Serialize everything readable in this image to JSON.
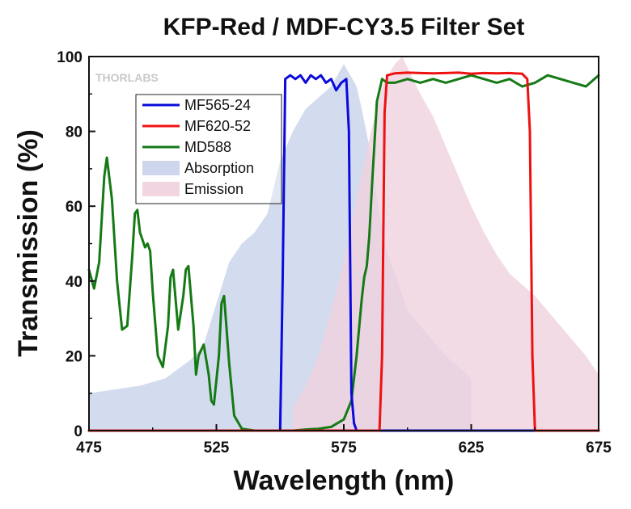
{
  "chart_data": {
    "type": "line",
    "title": "KFP-Red / MDF-CY3.5 Filter Set",
    "xlabel": "Wavelength (nm)",
    "ylabel": "Transmission (%)",
    "xlim": [
      475,
      675
    ],
    "ylim": [
      0,
      100
    ],
    "xticks": [
      475,
      525,
      575,
      625,
      675
    ],
    "yticks": [
      0,
      20,
      40,
      60,
      80,
      100
    ],
    "grid": false,
    "legend_position": "top-left",
    "watermark": "THORLABS",
    "series": [
      {
        "name": "MF565-24",
        "kind": "line",
        "color": "#0a0adc",
        "x": [
          475,
          550,
          551,
          552,
          554,
          556,
          558,
          560,
          562,
          564,
          566,
          568,
          570,
          572,
          574,
          576,
          577,
          578,
          579,
          580,
          675
        ],
        "y": [
          0,
          0,
          40,
          94,
          95,
          94,
          95,
          93,
          95,
          94,
          95,
          93,
          94,
          91,
          93,
          94,
          80,
          10,
          2,
          0,
          0
        ]
      },
      {
        "name": "MF620-52",
        "kind": "line",
        "color": "#ee1111",
        "x": [
          475,
          589,
          590,
          591,
          592,
          595,
          600,
          605,
          610,
          615,
          620,
          625,
          630,
          635,
          640,
          645,
          647,
          648,
          649,
          650,
          675
        ],
        "y": [
          0,
          0,
          20,
          85,
          95,
          95.5,
          95.7,
          95.6,
          95.5,
          95.6,
          95.7,
          95.4,
          95.6,
          95.5,
          95.6,
          95.4,
          94,
          80,
          20,
          0,
          0
        ]
      },
      {
        "name": "MD588",
        "kind": "line",
        "color": "#157a15",
        "x": [
          475,
          477,
          479,
          481,
          482,
          484,
          486,
          488,
          490,
          492,
          493,
          494,
          495,
          497,
          498,
          499,
          500,
          502,
          504,
          506,
          507,
          508,
          510,
          512,
          513,
          514,
          516,
          517,
          518,
          520,
          522,
          523,
          524,
          526,
          527,
          528,
          530,
          532,
          535,
          540,
          545,
          550,
          555,
          560,
          565,
          570,
          575,
          578,
          580,
          582,
          583,
          584,
          585,
          586,
          588,
          590,
          592,
          595,
          600,
          605,
          610,
          615,
          620,
          625,
          630,
          635,
          640,
          645,
          650,
          655,
          660,
          665,
          670,
          675
        ],
        "y": [
          43,
          38,
          45,
          68,
          73,
          62,
          40,
          27,
          28,
          47,
          58,
          59,
          53,
          49,
          50,
          48,
          37,
          20,
          17,
          28,
          41,
          43,
          27,
          36,
          43,
          44,
          28,
          15,
          20,
          23,
          15,
          8,
          7,
          20,
          34,
          36,
          18,
          4,
          0.5,
          0,
          0,
          0,
          0,
          0.3,
          0.5,
          1,
          3,
          8,
          20,
          35,
          41,
          44,
          52,
          65,
          88,
          94,
          93,
          93,
          94,
          93,
          94,
          93,
          94,
          95,
          94,
          93,
          94,
          92,
          93,
          95,
          94,
          93,
          92,
          95
        ]
      },
      {
        "name": "Absorption",
        "kind": "area",
        "color": "#c8d2ea",
        "x": [
          475,
          485,
          495,
          505,
          515,
          520,
          525,
          530,
          535,
          540,
          545,
          550,
          555,
          560,
          565,
          570,
          575,
          580,
          582,
          585,
          588,
          590,
          592,
          595,
          600,
          605,
          610,
          615,
          620,
          625
        ],
        "y": [
          10,
          11,
          12,
          14,
          19,
          23,
          34,
          45,
          50,
          53,
          58,
          72,
          80,
          86,
          89,
          92,
          98,
          92,
          86,
          76,
          62,
          54,
          48,
          42,
          32,
          28,
          24,
          20,
          17,
          14
        ]
      },
      {
        "name": "Emission",
        "kind": "area",
        "color": "#f0d2de",
        "x": [
          555,
          560,
          565,
          570,
          575,
          580,
          585,
          590,
          595,
          598,
          600,
          605,
          610,
          615,
          620,
          625,
          630,
          635,
          640,
          645,
          650,
          655,
          660,
          665,
          670,
          675
        ],
        "y": [
          6,
          12,
          20,
          32,
          45,
          62,
          78,
          92,
          98,
          100,
          97,
          90,
          84,
          76,
          68,
          60,
          53,
          47,
          42,
          39,
          36,
          32,
          28,
          24,
          20,
          15
        ]
      }
    ]
  }
}
